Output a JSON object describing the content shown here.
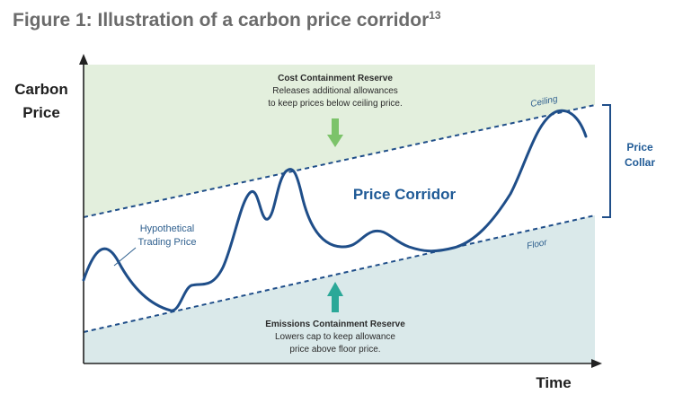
{
  "figure": {
    "title": "Figure 1: Illustration of a carbon price corridor",
    "footnote": "13"
  },
  "axes": {
    "y_label_line1": "Carbon",
    "y_label_line2": "Price",
    "x_label": "Time"
  },
  "cost_containment_reserve": {
    "title": "Cost Containment Reserve",
    "line1": "Releases additional allowances",
    "line2": "to keep prices below ceiling price."
  },
  "emissions_containment_reserve": {
    "title": "Emissions Containment Reserve",
    "line1": "Lowers cap to keep allowance",
    "line2": "price above floor price."
  },
  "corridor_label": "Price Corridor",
  "ceiling_label": "Ceiling",
  "floor_label": "Floor",
  "trading_price_label_line1": "Hypothetical",
  "trading_price_label_line2": "Trading Price",
  "collar_label_line1": "Price",
  "collar_label_line2": "Collar",
  "colors": {
    "top_region": "#e3efdd",
    "bottom_region": "#dae9ea",
    "line": "#1f4e89",
    "arrow_down": "#7cc36a",
    "arrow_up": "#2ba898"
  }
}
